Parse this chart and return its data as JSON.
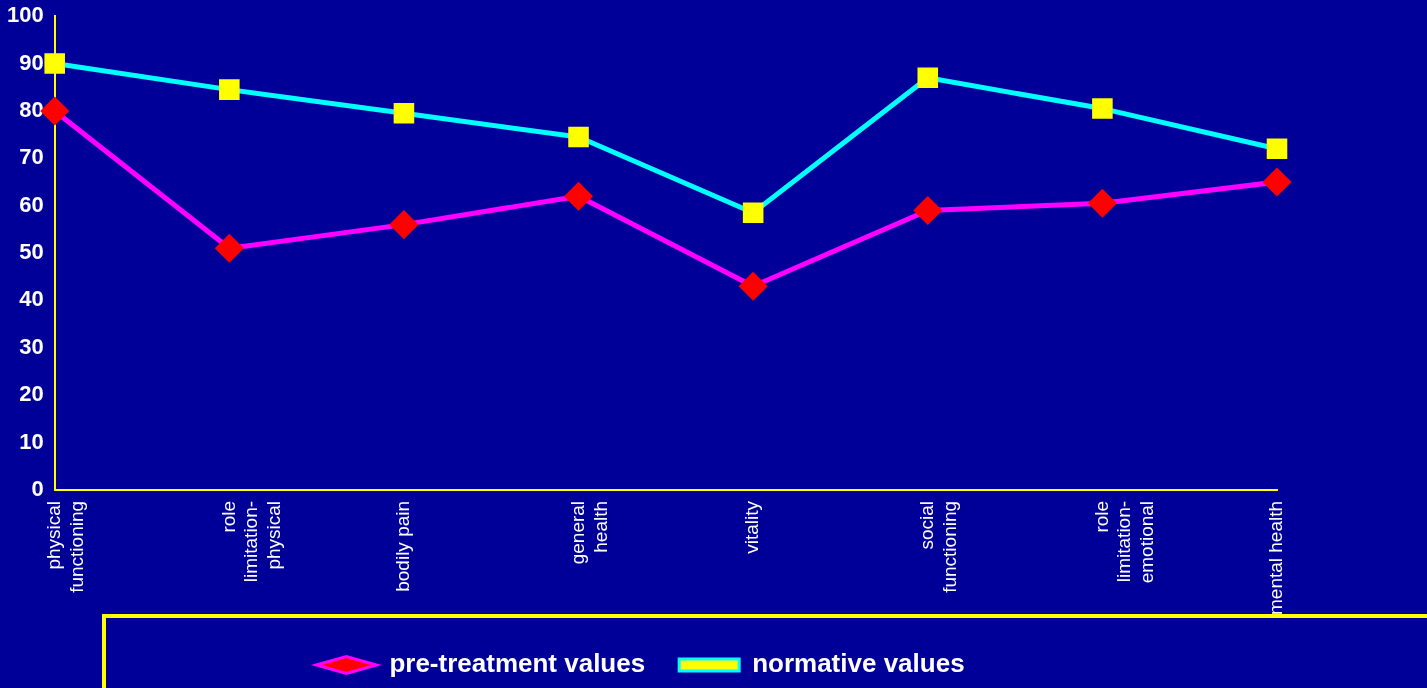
{
  "chart_data": {
    "type": "line",
    "categories": [
      "physical functioning",
      "role limitation-physical",
      "bodily pain",
      "general health",
      "vitality",
      "social functioning",
      "role limitation-emotional",
      "mental health"
    ],
    "series": [
      {
        "name": "pre-treatment values",
        "color": "#ff00ff",
        "colors": [
          "#ff0000",
          "#ff0000",
          "#ff0000",
          "#ff0000",
          "#ff0000",
          "#ff0000",
          "#ff0000",
          "#ff0000"
        ],
        "marker": "diamond",
        "values": [
          80,
          51,
          56,
          62,
          43,
          59,
          60.5,
          65
        ]
      },
      {
        "name": "normative values",
        "color": "#00ffff",
        "colors": [
          "#ffff00",
          "#ffff00",
          "#ffff00",
          "#ffff00",
          "#ffff00",
          "#ffff00",
          "#ffff00",
          "#ffff00"
        ],
        "marker": "square",
        "values": [
          90,
          84.5,
          79.5,
          74.5,
          58.5,
          87,
          80.5,
          72
        ]
      }
    ],
    "ylim": [
      0,
      100
    ],
    "yticks": [
      0,
      10,
      20,
      30,
      40,
      50,
      60,
      70,
      80,
      90,
      100
    ],
    "grid": false,
    "legend": "bottom",
    "line_style": "solid"
  }
}
